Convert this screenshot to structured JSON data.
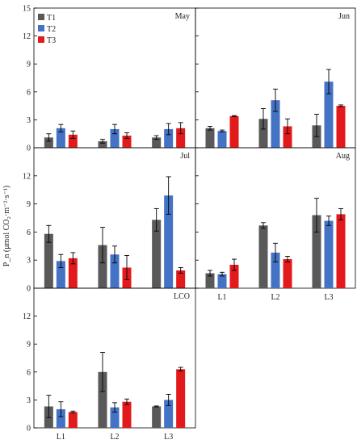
{
  "figure": {
    "ylabel": "P_n (μmol CO₂·m⁻²·s⁻¹)"
  },
  "legend": [
    {
      "name": "T1",
      "color": "#595959"
    },
    {
      "name": "T2",
      "color": "#4472c4"
    },
    {
      "name": "T3",
      "color": "#e31a1c"
    }
  ],
  "chart_data": [
    {
      "type": "bar",
      "title": "May",
      "categories": [
        "L1",
        "L2",
        "L3"
      ],
      "ylim": [
        0,
        15
      ],
      "yticks": [
        0,
        3,
        6,
        9,
        12,
        15
      ],
      "show_x_labels": false,
      "show_y_labels": true,
      "series": [
        {
          "name": "T1",
          "values": [
            1.1,
            0.7,
            1.1
          ],
          "errors": [
            0.4,
            0.2,
            0.2
          ]
        },
        {
          "name": "T2",
          "values": [
            2.1,
            2.0,
            2.0
          ],
          "errors": [
            0.4,
            0.5,
            0.6
          ]
        },
        {
          "name": "T3",
          "values": [
            1.4,
            1.3,
            2.1
          ],
          "errors": [
            0.4,
            0.3,
            0.6
          ]
        }
      ]
    },
    {
      "type": "bar",
      "title": "Jun",
      "categories": [
        "L1",
        "L2",
        "L3"
      ],
      "ylim": [
        0,
        15
      ],
      "yticks": [
        0,
        3,
        6,
        9,
        12,
        15
      ],
      "show_x_labels": false,
      "show_y_labels": false,
      "series": [
        {
          "name": "T1",
          "values": [
            2.1,
            3.1,
            2.4
          ],
          "errors": [
            0.2,
            1.1,
            1.2
          ]
        },
        {
          "name": "T2",
          "values": [
            1.8,
            5.1,
            7.1
          ],
          "errors": [
            0.1,
            1.2,
            1.3
          ]
        },
        {
          "name": "T3",
          "values": [
            3.4,
            2.3,
            4.5
          ],
          "errors": [
            0.05,
            0.8,
            0.1
          ]
        }
      ]
    },
    {
      "type": "bar",
      "title": "Jul",
      "categories": [
        "L1",
        "L2",
        "L3"
      ],
      "ylim": [
        0,
        15
      ],
      "yticks": [
        0,
        3,
        6,
        9,
        12
      ],
      "show_x_labels": false,
      "show_y_labels": true,
      "series": [
        {
          "name": "T1",
          "values": [
            5.8,
            4.6,
            7.3
          ],
          "errors": [
            0.9,
            1.9,
            1.2
          ]
        },
        {
          "name": "T2",
          "values": [
            2.9,
            3.6,
            9.9
          ],
          "errors": [
            0.7,
            0.9,
            2.0
          ]
        },
        {
          "name": "T3",
          "values": [
            3.2,
            2.2,
            1.9
          ],
          "errors": [
            0.6,
            1.3,
            0.3
          ]
        }
      ]
    },
    {
      "type": "bar",
      "title": "Aug",
      "categories": [
        "L1",
        "L2",
        "L3"
      ],
      "ylim": [
        0,
        15
      ],
      "yticks": [
        0,
        3,
        6,
        9,
        12
      ],
      "show_x_labels": true,
      "show_y_labels": false,
      "series": [
        {
          "name": "T1",
          "values": [
            1.6,
            6.7,
            7.8
          ],
          "errors": [
            0.3,
            0.3,
            1.8
          ]
        },
        {
          "name": "T2",
          "values": [
            1.5,
            3.8,
            7.2
          ],
          "errors": [
            0.2,
            1.0,
            0.5
          ]
        },
        {
          "name": "T3",
          "values": [
            2.5,
            3.1,
            7.9
          ],
          "errors": [
            0.6,
            0.3,
            0.6
          ]
        }
      ]
    },
    {
      "type": "bar",
      "title": "LCO",
      "categories": [
        "L1",
        "L2",
        "L3"
      ],
      "ylim": [
        0,
        15
      ],
      "yticks": [
        0,
        3,
        6,
        9,
        12
      ],
      "show_x_labels": true,
      "show_y_labels": true,
      "series": [
        {
          "name": "T1",
          "values": [
            2.3,
            6.0,
            2.3
          ],
          "errors": [
            1.2,
            2.1,
            0.05
          ]
        },
        {
          "name": "T2",
          "values": [
            2.0,
            2.2,
            3.0
          ],
          "errors": [
            0.8,
            0.5,
            0.6
          ]
        },
        {
          "name": "T3",
          "values": [
            1.7,
            2.8,
            6.3
          ],
          "errors": [
            0.1,
            0.3,
            0.2
          ]
        }
      ]
    }
  ]
}
